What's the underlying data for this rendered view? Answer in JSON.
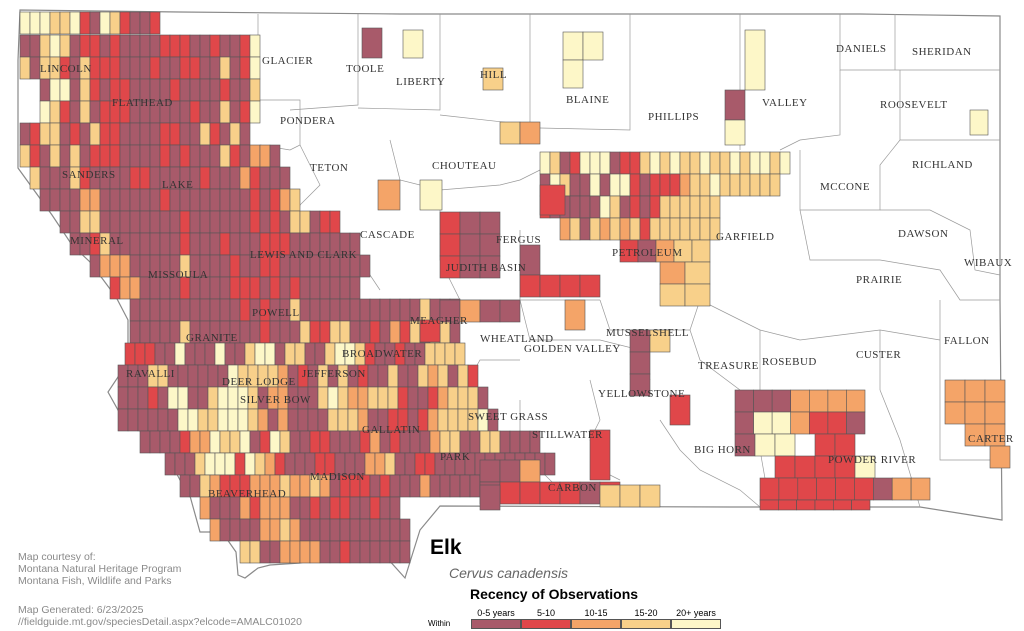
{
  "colors": {
    "c0_5": "#a85a6a",
    "c5_10": "#e0474a",
    "c10_15": "#f4a468",
    "c15_20": "#f8d08a",
    "c20p": "#fdf7c8",
    "border": "#8a8a8a",
    "grid": "#555555"
  },
  "counties": [
    {
      "name": "LINCOLN"
    },
    {
      "name": "FLATHEAD"
    },
    {
      "name": "GLACIER"
    },
    {
      "name": "TOOLE"
    },
    {
      "name": "LIBERTY"
    },
    {
      "name": "HILL"
    },
    {
      "name": "BLAINE"
    },
    {
      "name": "PHILLIPS"
    },
    {
      "name": "VALLEY"
    },
    {
      "name": "DANIELS"
    },
    {
      "name": "SHERIDAN"
    },
    {
      "name": "ROOSEVELT"
    },
    {
      "name": "PONDERA"
    },
    {
      "name": "SANDERS"
    },
    {
      "name": "LAKE"
    },
    {
      "name": "TETON"
    },
    {
      "name": "CHOUTEAU"
    },
    {
      "name": "RICHLAND"
    },
    {
      "name": "MCCONE"
    },
    {
      "name": "MINERAL"
    },
    {
      "name": "CASCADE"
    },
    {
      "name": "FERGUS"
    },
    {
      "name": "GARFIELD"
    },
    {
      "name": "DAWSON"
    },
    {
      "name": "MISSOULA"
    },
    {
      "name": "LEWIS AND CLARK"
    },
    {
      "name": "JUDITH BASIN"
    },
    {
      "name": "PETROLEUM"
    },
    {
      "name": "PRAIRIE"
    },
    {
      "name": "WIBAUX"
    },
    {
      "name": "POWELL"
    },
    {
      "name": "MEAGHER"
    },
    {
      "name": "WHEATLAND"
    },
    {
      "name": "MUSSELSHELL"
    },
    {
      "name": "GOLDEN VALLEY"
    },
    {
      "name": "FALLON"
    },
    {
      "name": "GRANITE"
    },
    {
      "name": "BROADWATER"
    },
    {
      "name": "TREASURE"
    },
    {
      "name": "ROSEBUD"
    },
    {
      "name": "CUSTER"
    },
    {
      "name": "RAVALLI"
    },
    {
      "name": "DEER LODGE"
    },
    {
      "name": "JEFFERSON"
    },
    {
      "name": "SILVER BOW"
    },
    {
      "name": "YELLOWSTONE"
    },
    {
      "name": "SWEET GRASS"
    },
    {
      "name": "STILLWATER"
    },
    {
      "name": "GALLATIN"
    },
    {
      "name": "BIG HORN"
    },
    {
      "name": "CARTER"
    },
    {
      "name": "POWDER RIVER"
    },
    {
      "name": "PARK"
    },
    {
      "name": "MADISON"
    },
    {
      "name": "CARBON"
    },
    {
      "name": "BEAVERHEAD"
    }
  ],
  "credit": {
    "line1": "Map courtesy of:",
    "line2": "Montana Natural Heritage Program",
    "line3": "Montana Fish, Wildlife and Parks",
    "generated": "Map Generated: 6/23/2025",
    "url": "//fieldguide.mt.gov/speciesDetail.aspx?elcode=AMALC01020"
  },
  "species": {
    "common": "Elk",
    "scientific": "Cervus canadensis"
  },
  "legend": {
    "title": "Recency of Observations",
    "within": "Within",
    "items": [
      {
        "label": "0-5 years",
        "color": "#a85a6a"
      },
      {
        "label": "5-10",
        "color": "#e0474a"
      },
      {
        "label": "10-15",
        "color": "#f4a468"
      },
      {
        "label": "15-20",
        "color": "#f8d08a"
      },
      {
        "label": "20+ years",
        "color": "#fdf7c8"
      }
    ]
  }
}
